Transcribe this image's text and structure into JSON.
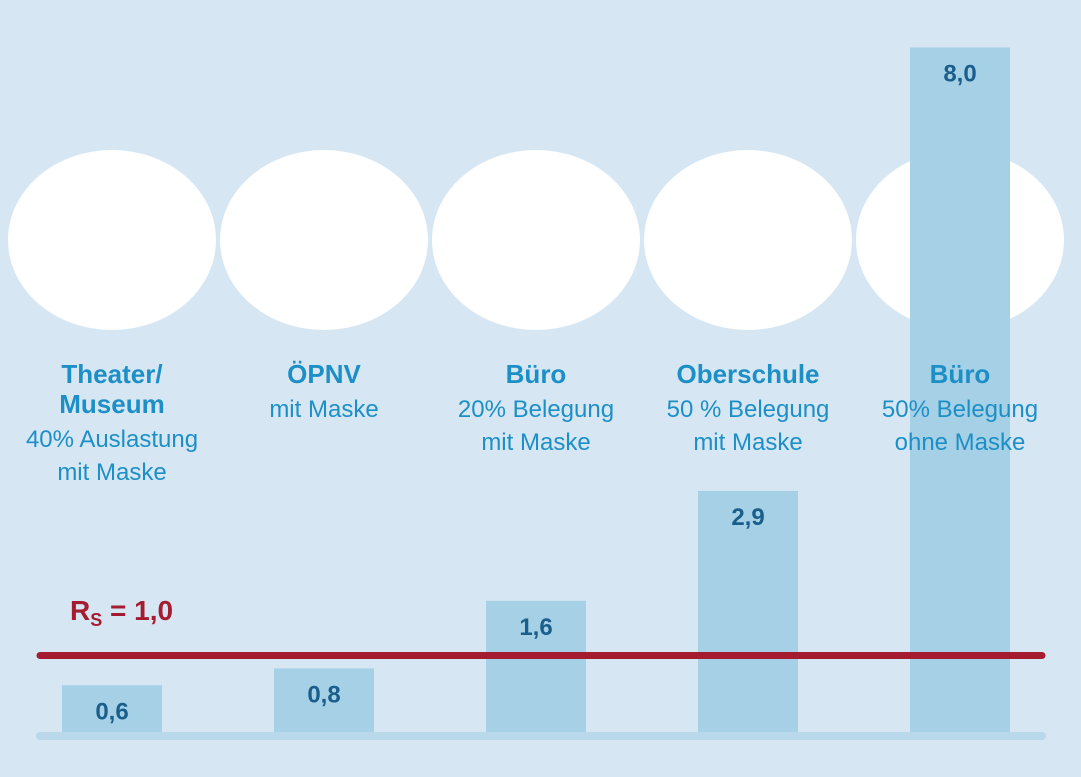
{
  "chart_data": {
    "type": "bar",
    "categories": [
      {
        "title": [
          "Theater/",
          "Museum"
        ],
        "subtitle": [
          "40% Auslastung",
          "mit Maske"
        ]
      },
      {
        "title": [
          "ÖPNV"
        ],
        "subtitle": [
          "mit Maske"
        ]
      },
      {
        "title": [
          "Büro"
        ],
        "subtitle": [
          "20% Belegung",
          "mit Maske"
        ]
      },
      {
        "title": [
          "Oberschule"
        ],
        "subtitle": [
          "50 % Belegung",
          "mit Maske"
        ]
      },
      {
        "title": [
          "Büro"
        ],
        "subtitle": [
          "50% Belegung",
          "ohne Maske"
        ]
      }
    ],
    "values": [
      0.6,
      0.8,
      1.6,
      2.9,
      8.0
    ],
    "value_labels": [
      "0,6",
      "0,8",
      "1,6",
      "2,9",
      "8,0"
    ],
    "reference_line": {
      "label_main": "R",
      "label_sub": "S",
      "label_rest": " = 1,0",
      "value": 1.0
    },
    "illustrations": [
      "theater-audience-icon",
      "public-transport-icon",
      "office-desk-icon",
      "classroom-icon",
      "office-desk-icon"
    ],
    "colors": {
      "background": "#d6e7f3",
      "bar": "#a5d0e6",
      "value_text": "#1a5e8c",
      "category_text": "#1d8fc7",
      "reference_line": "#a51c30",
      "illustration_blob": "#ffffff"
    }
  }
}
